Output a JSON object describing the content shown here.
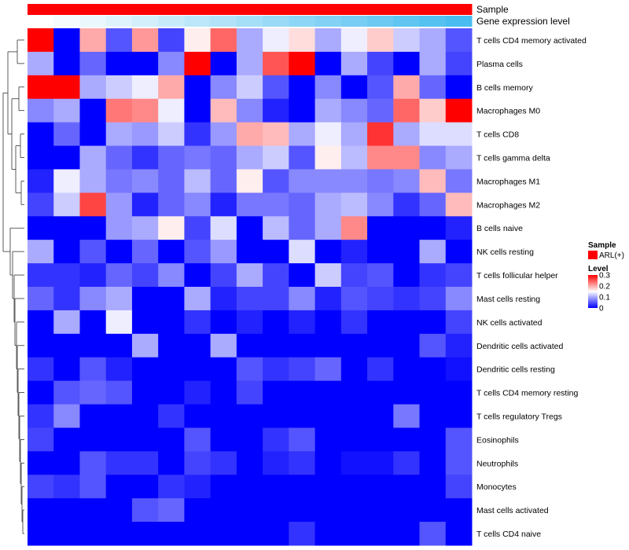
{
  "chart_data": {
    "type": "heatmap",
    "annotations": [
      {
        "label": "Sample",
        "color": "#ff0000"
      },
      {
        "label": "Gene expression level",
        "colors": [
          "#ffffff",
          "#f6fcfe",
          "#eaf7fd",
          "#dff3fc",
          "#d3effb",
          "#c8ebfa",
          "#bce6f9",
          "#b1e2f8",
          "#a5def7",
          "#9adaf6",
          "#8ed6f5",
          "#83d1f4",
          "#77cdf3",
          "#6cc9f2",
          "#60c5f1",
          "#55c1f0",
          "#4abdf0"
        ]
      }
    ],
    "rows": [
      "T cells CD4 memory activated",
      "Plasma cells",
      "B cells memory",
      "Macrophages M0",
      "T cells CD8",
      "T cells gamma delta",
      "Macrophages M1",
      "Macrophages M2",
      "B cells naive",
      "NK cells resting",
      "T cells follicular helper",
      "Mast cells resting",
      "NK cells activated",
      "Dendritic cells activated",
      "Dendritic cells resting",
      "T cells CD4 memory resting",
      "T cells regulatory  Tregs",
      "Eosinophils",
      "Neutrophils",
      "Monocytes",
      "Mast cells activated",
      "T cells CD4 naive"
    ],
    "n_columns": 17,
    "values": [
      [
        0.3,
        0.0,
        0.2,
        0.05,
        0.21,
        0.04,
        0.16,
        0.24,
        0.1,
        0.14,
        0.17,
        0.1,
        0.14,
        0.18,
        0.12,
        0.1,
        0.05
      ],
      [
        0.1,
        0.0,
        0.06,
        0.0,
        0.0,
        0.08,
        0.3,
        0.0,
        0.1,
        0.25,
        0.3,
        0.0,
        0.1,
        0.04,
        0.0,
        0.1,
        0.04
      ],
      [
        0.3,
        0.3,
        0.1,
        0.12,
        0.14,
        0.2,
        0.0,
        0.08,
        0.12,
        0.05,
        0.0,
        0.08,
        0.0,
        0.05,
        0.2,
        0.06,
        0.0
      ],
      [
        0.08,
        0.1,
        0.0,
        0.23,
        0.22,
        0.14,
        0.0,
        0.19,
        0.08,
        0.02,
        0.0,
        0.1,
        0.08,
        0.06,
        0.24,
        0.18,
        0.3
      ],
      [
        0.0,
        0.06,
        0.0,
        0.1,
        0.09,
        0.12,
        0.03,
        0.09,
        0.2,
        0.19,
        0.1,
        0.14,
        0.1,
        0.27,
        0.1,
        0.13,
        0.13
      ],
      [
        0.0,
        0.0,
        0.1,
        0.06,
        0.03,
        0.06,
        0.07,
        0.06,
        0.1,
        0.12,
        0.05,
        0.16,
        0.11,
        0.22,
        0.22,
        0.08,
        0.1
      ],
      [
        0.02,
        0.14,
        0.1,
        0.07,
        0.08,
        0.06,
        0.11,
        0.06,
        0.16,
        0.05,
        0.08,
        0.08,
        0.08,
        0.07,
        0.08,
        0.19,
        0.07
      ],
      [
        0.04,
        0.12,
        0.26,
        0.09,
        0.02,
        0.06,
        0.08,
        0.02,
        0.07,
        0.07,
        0.06,
        0.1,
        0.11,
        0.08,
        0.03,
        0.06,
        0.19
      ],
      [
        0.0,
        0.0,
        0.0,
        0.09,
        0.1,
        0.16,
        0.04,
        0.13,
        0.0,
        0.11,
        0.06,
        0.1,
        0.22,
        0.0,
        0.0,
        0.0,
        0.02
      ],
      [
        0.1,
        0.0,
        0.05,
        0.0,
        0.06,
        0.0,
        0.05,
        0.09,
        0.0,
        0.0,
        0.13,
        0.0,
        0.02,
        0.0,
        0.0,
        0.1,
        0.0
      ],
      [
        0.03,
        0.03,
        0.02,
        0.06,
        0.04,
        0.08,
        0.0,
        0.04,
        0.1,
        0.04,
        0.0,
        0.12,
        0.04,
        0.05,
        0.0,
        0.03,
        0.04
      ],
      [
        0.06,
        0.03,
        0.08,
        0.1,
        0.0,
        0.0,
        0.1,
        0.02,
        0.04,
        0.04,
        0.08,
        0.02,
        0.05,
        0.04,
        0.03,
        0.04,
        0.08
      ],
      [
        0.0,
        0.1,
        0.0,
        0.14,
        0.0,
        0.0,
        0.03,
        0.0,
        0.02,
        0.0,
        0.02,
        0.0,
        0.03,
        0.0,
        0.0,
        0.0,
        0.04
      ],
      [
        0.0,
        0.0,
        0.0,
        0.0,
        0.1,
        0.0,
        0.0,
        0.1,
        0.0,
        0.0,
        0.0,
        0.0,
        0.0,
        0.0,
        0.0,
        0.05,
        0.02
      ],
      [
        0.03,
        0.0,
        0.05,
        0.02,
        0.0,
        0.0,
        0.0,
        0.0,
        0.05,
        0.03,
        0.04,
        0.06,
        0.0,
        0.03,
        0.0,
        0.0,
        0.01
      ],
      [
        0.0,
        0.05,
        0.06,
        0.05,
        0.0,
        0.0,
        0.02,
        0.0,
        0.04,
        0.0,
        0.0,
        0.0,
        0.0,
        0.0,
        0.0,
        0.0,
        0.0
      ],
      [
        0.03,
        0.08,
        0.0,
        0.0,
        0.0,
        0.03,
        0.0,
        0.0,
        0.0,
        0.0,
        0.0,
        0.0,
        0.0,
        0.0,
        0.07,
        0.0,
        0.0
      ],
      [
        0.04,
        0.0,
        0.0,
        0.0,
        0.0,
        0.0,
        0.05,
        0.0,
        0.0,
        0.03,
        0.05,
        0.0,
        0.0,
        0.0,
        0.0,
        0.0,
        0.05
      ],
      [
        0.0,
        0.0,
        0.05,
        0.03,
        0.03,
        0.0,
        0.04,
        0.03,
        0.0,
        0.02,
        0.03,
        0.0,
        0.01,
        0.01,
        0.03,
        0.0,
        0.05
      ],
      [
        0.04,
        0.03,
        0.05,
        0.0,
        0.0,
        0.03,
        0.02,
        0.0,
        0.0,
        0.0,
        0.0,
        0.0,
        0.0,
        0.0,
        0.0,
        0.0,
        0.04
      ],
      [
        0.0,
        0.0,
        0.0,
        0.0,
        0.05,
        0.06,
        0.0,
        0.0,
        0.0,
        0.0,
        0.0,
        0.0,
        0.0,
        0.0,
        0.0,
        0.0,
        0.0
      ],
      [
        0.0,
        0.0,
        0.0,
        0.0,
        0.0,
        0.0,
        0.0,
        0.0,
        0.0,
        0.0,
        0.03,
        0.0,
        0.0,
        0.0,
        0.0,
        0.05,
        0.0
      ]
    ],
    "color_scale": {
      "min": 0,
      "mid": 0.15,
      "max": 0.3,
      "colors": [
        "#0000ff",
        "#ffffff",
        "#ff0000"
      ]
    },
    "legend": {
      "sample_title": "Sample",
      "sample_entry": "ARL(+)",
      "level_title": "Level",
      "level_ticks": [
        0.3,
        0.2,
        0.1,
        0
      ],
      "level_tick_labels": [
        "0.3",
        "0.2",
        "0.1",
        "0"
      ],
      "position": "right"
    },
    "dendrogram": "rows"
  }
}
